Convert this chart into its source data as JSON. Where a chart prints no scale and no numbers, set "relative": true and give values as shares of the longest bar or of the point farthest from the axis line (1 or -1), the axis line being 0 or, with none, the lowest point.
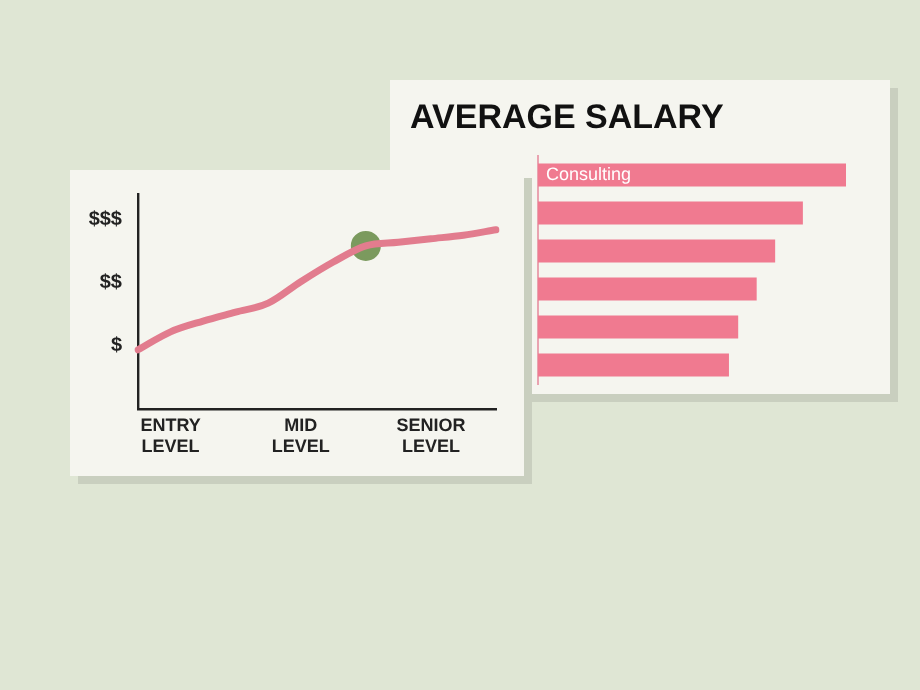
{
  "chart_data": [
    {
      "type": "bar",
      "orientation": "horizontal",
      "relative": true,
      "title": "AVERAGE SALARY",
      "categories": [
        "Consulting",
        null,
        null,
        null,
        null,
        null
      ],
      "values": [
        1,
        0.86,
        0.77,
        0.71,
        0.65,
        0.62
      ],
      "color": "#f07a90",
      "grid": false,
      "legend": false
    },
    {
      "type": "line",
      "relative": true,
      "grid": false,
      "legend": false,
      "marker": "none",
      "annotations": [
        "$",
        "$$",
        "$$$"
      ],
      "categories": [
        null,
        "ENTRY LEVEL",
        null,
        null,
        null,
        "MID LEVEL",
        null,
        null,
        null,
        "SENIOR LEVEL",
        null,
        null
      ],
      "series": [
        {
          "type": "line",
          "color": "#e27c8e",
          "values": [
            0.33,
            0.43,
            0.49,
            0.54,
            0.59,
            0.71,
            0.82,
            0.91,
            0.93,
            0.95,
            0.97,
            1
          ]
        },
        {
          "type": "scatter",
          "marker": "circle",
          "color": "#7b9a5e",
          "values": [
            null,
            null,
            null,
            null,
            null,
            null,
            null,
            0.91,
            null,
            null,
            null,
            null
          ]
        }
      ]
    }
  ]
}
